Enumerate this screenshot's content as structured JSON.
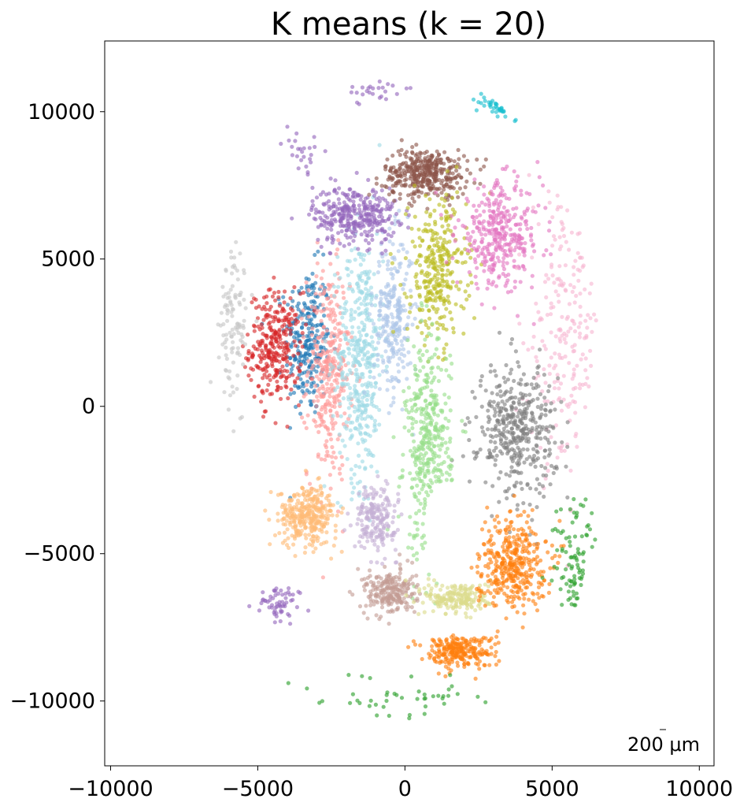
{
  "chart_data": {
    "type": "scatter",
    "title": "K means (k = 20)",
    "xlabel": "",
    "ylabel": "",
    "xlim": [
      -10200,
      10500
    ],
    "ylim": [
      -12200,
      12400
    ],
    "x_ticks": [
      -10000,
      -5000,
      0,
      5000,
      10000
    ],
    "y_ticks": [
      -10000,
      -5000,
      0,
      5000,
      10000
    ],
    "x_tick_labels": [
      "−10000",
      "−5000",
      "0",
      "5000",
      "10000"
    ],
    "y_tick_labels": [
      "−10000",
      "−5000",
      "0",
      "5000",
      "10000"
    ],
    "grid": false,
    "legend": "none",
    "scale_bar_label": "200 μm",
    "clusters": [
      {
        "id": 0,
        "color": "#1f77b4",
        "center": [
          -3300,
          2200
        ],
        "spread": [
          700,
          2300
        ],
        "n": 260
      },
      {
        "id": 1,
        "color": "#d62728",
        "center": [
          -4400,
          2000
        ],
        "spread": [
          800,
          1700
        ],
        "n": 300
      },
      {
        "id": 2,
        "color": "#ff9896",
        "center": [
          -2600,
          1200
        ],
        "spread": [
          650,
          3300
        ],
        "n": 330
      },
      {
        "id": 3,
        "color": "#9edae5",
        "center": [
          -1500,
          1700
        ],
        "spread": [
          700,
          3800
        ],
        "n": 420
      },
      {
        "id": 4,
        "color": "#aec7e8",
        "center": [
          -400,
          3000
        ],
        "spread": [
          600,
          2500
        ],
        "n": 260
      },
      {
        "id": 5,
        "color": "#9467bd",
        "center": [
          -1700,
          6500
        ],
        "spread": [
          1300,
          900
        ],
        "n": 330
      },
      {
        "id": 6,
        "color": "#8c564b",
        "center": [
          700,
          7900
        ],
        "spread": [
          1300,
          750
        ],
        "n": 380
      },
      {
        "id": 7,
        "color": "#bcbd22",
        "center": [
          1100,
          4600
        ],
        "spread": [
          900,
          2200
        ],
        "n": 320
      },
      {
        "id": 8,
        "color": "#e377c2",
        "center": [
          3200,
          5800
        ],
        "spread": [
          1300,
          1600
        ],
        "n": 360
      },
      {
        "id": 9,
        "color": "#f7b6d2",
        "center": [
          5400,
          2500
        ],
        "spread": [
          1100,
          4200
        ],
        "n": 220
      },
      {
        "id": 10,
        "color": "#7f7f7f",
        "center": [
          3800,
          -800
        ],
        "spread": [
          1200,
          2000
        ],
        "n": 420
      },
      {
        "id": 11,
        "color": "#98df8a",
        "center": [
          800,
          -1500
        ],
        "spread": [
          700,
          3300
        ],
        "n": 380
      },
      {
        "id": 12,
        "color": "#ffbb78",
        "center": [
          -3300,
          -3700
        ],
        "spread": [
          900,
          900
        ],
        "n": 330
      },
      {
        "id": 13,
        "color": "#c5b0d5",
        "center": [
          -1000,
          -3800
        ],
        "spread": [
          650,
          1000
        ],
        "n": 200
      },
      {
        "id": 14,
        "color": "#c49c94",
        "center": [
          -500,
          -6300
        ],
        "spread": [
          800,
          700
        ],
        "n": 230
      },
      {
        "id": 15,
        "color": "#dbdb8d",
        "center": [
          1800,
          -6500
        ],
        "spread": [
          1000,
          500
        ],
        "n": 200
      },
      {
        "id": 16,
        "color": "#ff7f0e",
        "center": [
          3600,
          -5300
        ],
        "spread": [
          1100,
          1400
        ],
        "n": 380
      },
      {
        "id": 17,
        "color": "#ff7f0e",
        "center": [
          1800,
          -8300
        ],
        "spread": [
          1100,
          500
        ],
        "n": 250
      },
      {
        "id": 18,
        "color": "#2ca02c",
        "center": [
          5800,
          -5600
        ],
        "spread": [
          700,
          2200
        ],
        "n": 90
      },
      {
        "id": 19,
        "color": "#17becf",
        "center": [
          4300,
          10400
        ],
        "spread": [
          1100,
          400
        ],
        "n": 90
      },
      {
        "id": 20,
        "color": "#c7c7c7",
        "center": [
          -5800,
          2800
        ],
        "spread": [
          450,
          2300
        ],
        "n": 110
      }
    ],
    "outer_ring_clusters": [
      {
        "color": "#9467bd",
        "x": -4300,
        "y": -6800,
        "spread": [
          600,
          600
        ],
        "n": 60
      },
      {
        "color": "#2ca02c",
        "x": 0,
        "y": -9800,
        "spread": [
          2500,
          600
        ],
        "n": 45
      },
      {
        "color": "#9467bd",
        "x": -1000,
        "y": 10700,
        "spread": [
          1000,
          300
        ],
        "n": 25
      },
      {
        "color": "#9467bd",
        "x": -3500,
        "y": 8600,
        "spread": [
          600,
          900
        ],
        "n": 25
      }
    ]
  }
}
